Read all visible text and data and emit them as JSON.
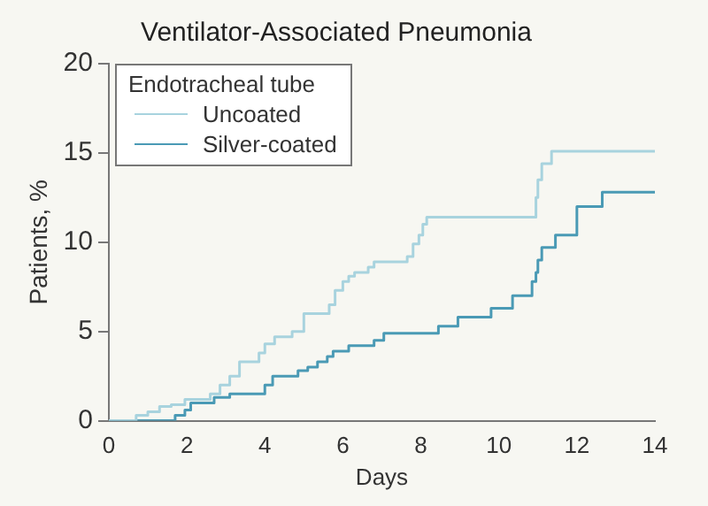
{
  "chart_data": {
    "type": "step",
    "title": "Ventilator-Associated Pneumonia",
    "xlabel": "Days",
    "ylabel": "Patients, %",
    "legend_title": "Endotracheal tube",
    "legend": "top left",
    "grid": false,
    "xlim": [
      0,
      14
    ],
    "xticks": [
      0,
      2,
      4,
      6,
      8,
      10,
      12,
      14
    ],
    "ylim": [
      0,
      20
    ],
    "yticks": [
      0,
      5,
      10,
      15,
      20
    ],
    "series": [
      {
        "name": "Uncoated",
        "color": "#a8d3de",
        "x": [
          0,
          0.7,
          1.0,
          1.3,
          1.6,
          1.95,
          2.6,
          2.85,
          3.1,
          3.35,
          3.85,
          4.0,
          4.25,
          4.7,
          5.0,
          5.65,
          5.8,
          6.0,
          6.15,
          6.3,
          6.65,
          6.8,
          7.65,
          7.8,
          7.95,
          8.05,
          8.15,
          10.95,
          11.0,
          11.1,
          11.35,
          14
        ],
        "values": [
          0,
          0.3,
          0.5,
          0.8,
          0.9,
          1.2,
          1.5,
          2.0,
          2.5,
          3.3,
          3.8,
          4.3,
          4.7,
          5.0,
          6.0,
          6.5,
          7.3,
          7.8,
          8.1,
          8.3,
          8.6,
          8.9,
          9.2,
          9.9,
          10.4,
          11.0,
          11.4,
          12.5,
          13.5,
          14.4,
          15.1,
          15.1
        ]
      },
      {
        "name": "Silver-coated",
        "color": "#4a9ab5",
        "x": [
          0,
          1.7,
          1.95,
          2.1,
          2.7,
          3.1,
          4.0,
          4.2,
          4.85,
          5.1,
          5.35,
          5.6,
          5.75,
          6.15,
          6.8,
          7.05,
          8.45,
          8.95,
          9.8,
          10.35,
          10.85,
          10.95,
          11.0,
          11.1,
          11.45,
          12.0,
          12.65,
          14
        ],
        "values": [
          0,
          0.3,
          0.6,
          1.0,
          1.3,
          1.5,
          2.0,
          2.5,
          2.8,
          3.0,
          3.3,
          3.6,
          3.9,
          4.2,
          4.5,
          4.9,
          5.3,
          5.8,
          6.3,
          7.0,
          7.8,
          8.3,
          9.0,
          9.7,
          10.4,
          12.0,
          12.8,
          12.8
        ]
      }
    ]
  }
}
